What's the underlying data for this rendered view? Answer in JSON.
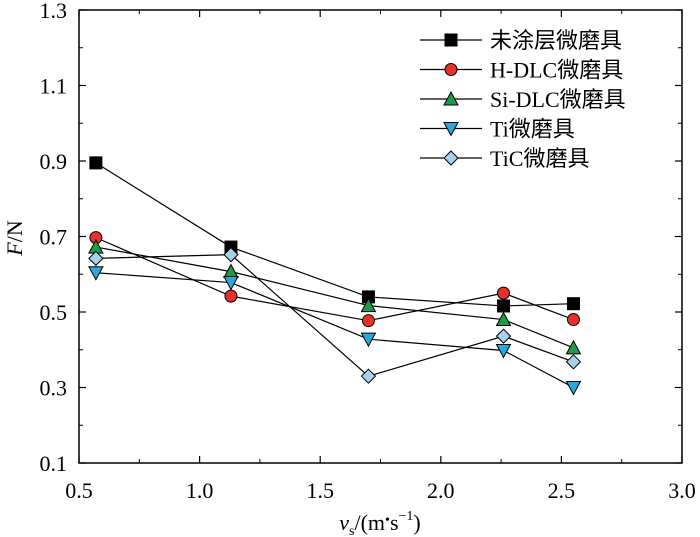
{
  "chart_data": {
    "type": "line",
    "title": "",
    "xlabel_main": "v",
    "xlabel_sub": "s",
    "xlabel_unit_open": "/(m",
    "xlabel_unit_dot": "•",
    "xlabel_unit_s": "s",
    "xlabel_unit_exp": "−1",
    "xlabel_unit_close": ")",
    "ylabel_main": "F",
    "ylabel_unit": "/N",
    "xlim": [
      0.5,
      3.0
    ],
    "ylim": [
      0.1,
      1.3
    ],
    "xticks": [
      "0.5",
      "1.0",
      "1.5",
      "2.0",
      "2.5",
      "3.0"
    ],
    "yticks": [
      "0.1",
      "0.3",
      "0.5",
      "0.7",
      "0.9",
      "1.1",
      "1.3"
    ],
    "grid": false,
    "legend_position": "top-right",
    "x": [
      0.57,
      1.13,
      1.7,
      2.26,
      2.55
    ],
    "series": [
      {
        "name": "未涂层微磨具",
        "marker": "square",
        "color": "#000000",
        "values": [
          0.895,
          0.672,
          0.54,
          0.516,
          0.522
        ]
      },
      {
        "name": "H-DLC微磨具",
        "marker": "circle",
        "color": "#e8302a",
        "values": [
          0.697,
          0.542,
          0.477,
          0.55,
          0.48
        ]
      },
      {
        "name": "Si-DLC微磨具",
        "marker": "triangle-up",
        "color": "#1f9a48",
        "values": [
          0.672,
          0.607,
          0.517,
          0.48,
          0.405
        ]
      },
      {
        "name": "Ti微磨具",
        "marker": "triangle-down",
        "color": "#29a8e0",
        "values": [
          0.604,
          0.578,
          0.428,
          0.398,
          0.3
        ]
      },
      {
        "name": "TiC微磨具",
        "marker": "diamond",
        "color": "#a6d0ec",
        "values": [
          0.642,
          0.652,
          0.33,
          0.436,
          0.368
        ]
      }
    ]
  }
}
